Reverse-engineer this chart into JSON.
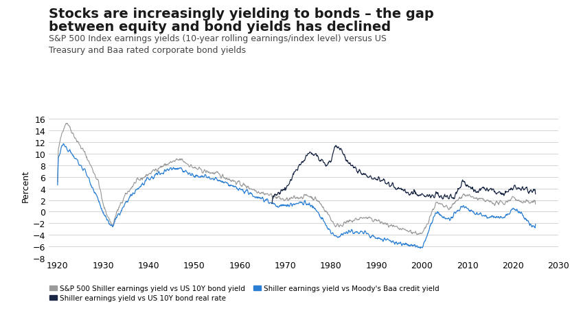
{
  "title_line1": "Stocks are increasingly yielding to bonds – the gap",
  "title_line2": "between equity and bond yields has declined",
  "subtitle": "S&P 500 Index earnings yields (10-year rolling earnings/index level) versus US\nTreasury and Baa rated corporate bond yields",
  "ylabel": "Percent",
  "xlim": [
    1918,
    2030
  ],
  "ylim": [
    -8,
    17
  ],
  "yticks": [
    -8,
    -6,
    -4,
    -2,
    0,
    2,
    4,
    6,
    8,
    10,
    12,
    14,
    16
  ],
  "xticks": [
    1920,
    1930,
    1940,
    1950,
    1960,
    1970,
    1980,
    1990,
    2000,
    2010,
    2020,
    2030
  ],
  "line_gray_color": "#9a9a9a",
  "line_blue_color": "#2a7fd4",
  "line_navy_color": "#1a2744",
  "background_color": "#ffffff",
  "legend_labels": [
    "S&P 500 Shiller earnings yield vs US 10Y bond yield",
    "Shiller earnings yield vs US 10Y bond real rate",
    "Shiller earnings yield vs Moody's Baa credit yield"
  ],
  "title_fontsize": 14,
  "subtitle_fontsize": 9,
  "axis_fontsize": 9,
  "gray_xknots": [
    1920,
    1921,
    1922,
    1923,
    1924,
    1926,
    1929,
    1930,
    1932,
    1933,
    1935,
    1937,
    1939,
    1942,
    1945,
    1947,
    1950,
    1952,
    1955,
    1958,
    1961,
    1964,
    1966,
    1968,
    1970,
    1973,
    1975,
    1977,
    1979,
    1981,
    1983,
    1985,
    1987,
    1990,
    1993,
    1995,
    1998,
    2000,
    2003,
    2006,
    2009,
    2011,
    2013,
    2016,
    2018,
    2020,
    2022,
    2024
  ],
  "gray_yknots": [
    10,
    14.0,
    15.5,
    14.0,
    12.5,
    10.0,
    5.0,
    1.0,
    -2.5,
    0.0,
    3.0,
    5.0,
    6.0,
    7.5,
    8.5,
    9.0,
    7.5,
    7.0,
    6.5,
    5.5,
    4.5,
    3.5,
    3.0,
    2.5,
    2.0,
    2.5,
    2.8,
    2.0,
    0.0,
    -2.5,
    -2.0,
    -1.5,
    -1.0,
    -1.5,
    -2.5,
    -3.0,
    -3.5,
    -4.0,
    1.5,
    0.5,
    3.0,
    2.5,
    2.0,
    1.5,
    1.5,
    2.5,
    1.5,
    1.8
  ],
  "blue_xknots": [
    1920,
    1921,
    1922,
    1923,
    1924,
    1926,
    1929,
    1930,
    1932,
    1933,
    1935,
    1937,
    1939,
    1942,
    1945,
    1947,
    1950,
    1952,
    1955,
    1958,
    1961,
    1964,
    1966,
    1968,
    1970,
    1973,
    1975,
    1977,
    1979,
    1981,
    1983,
    1985,
    1987,
    1990,
    1993,
    1995,
    1998,
    2000,
    2003,
    2006,
    2009,
    2011,
    2013,
    2016,
    2018,
    2020,
    2022,
    2024
  ],
  "blue_yknots": [
    9.0,
    11.5,
    11.0,
    10.0,
    9.0,
    7.0,
    2.0,
    -0.5,
    -2.7,
    -1.0,
    1.5,
    3.5,
    5.0,
    6.5,
    7.5,
    7.5,
    6.0,
    6.0,
    5.5,
    4.5,
    3.5,
    2.5,
    2.0,
    1.0,
    1.0,
    1.5,
    1.5,
    0.0,
    -2.5,
    -4.5,
    -3.5,
    -3.5,
    -3.5,
    -4.5,
    -5.0,
    -5.5,
    -5.8,
    -6.3,
    0.0,
    -1.5,
    1.0,
    0.0,
    -0.5,
    -1.0,
    -1.0,
    0.5,
    -0.5,
    -2.5
  ],
  "navy_xknots": [
    1967,
    1968,
    1970,
    1972,
    1973,
    1975,
    1977,
    1979,
    1980,
    1981,
    1982,
    1983,
    1984,
    1985,
    1987,
    1989,
    1991,
    1993,
    1995,
    1997,
    1999,
    2001,
    2003,
    2005,
    2007,
    2009,
    2010,
    2012,
    2014,
    2016,
    2018,
    2020,
    2022,
    2024
  ],
  "navy_yknots": [
    2.0,
    3.0,
    4.0,
    6.5,
    8.0,
    10.0,
    9.5,
    8.0,
    9.0,
    11.5,
    10.5,
    9.5,
    8.0,
    7.5,
    6.5,
    6.0,
    5.5,
    4.5,
    4.0,
    3.5,
    3.0,
    2.5,
    3.0,
    2.5,
    2.5,
    5.5,
    4.5,
    3.5,
    4.0,
    3.5,
    3.0,
    4.5,
    4.0,
    3.5
  ]
}
